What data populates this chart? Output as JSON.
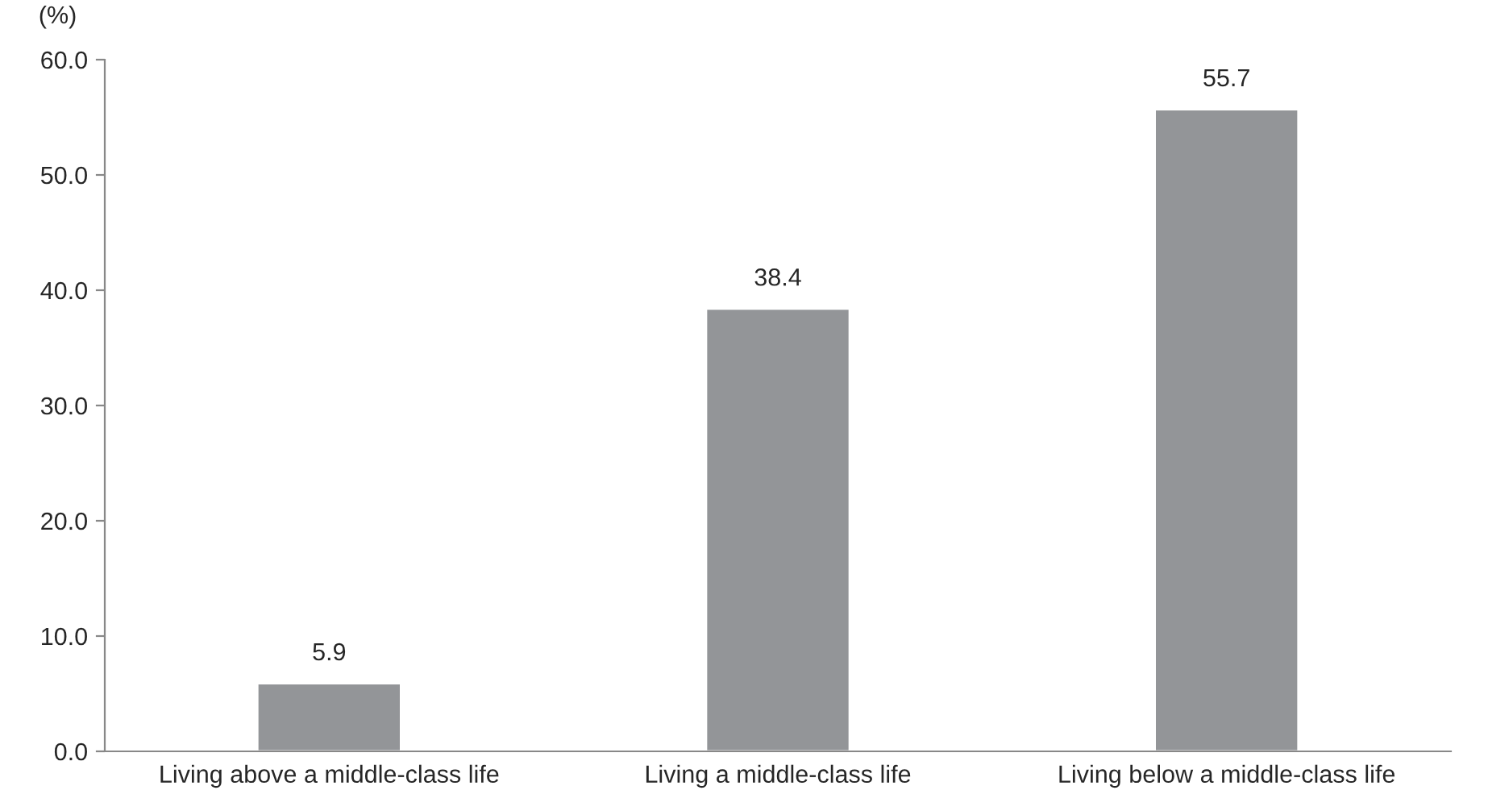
{
  "chart_data": {
    "type": "bar",
    "ylabel": "(%)",
    "categories": [
      "Living above a middle-class life",
      "Living a middle-class life",
      "Living below a middle-class life"
    ],
    "values": [
      5.9,
      38.4,
      55.7
    ],
    "color": "#939598",
    "ylim": [
      0,
      60
    ],
    "yticks": [
      {
        "value": 0,
        "label": "0.0"
      },
      {
        "value": 10,
        "label": "10.0"
      },
      {
        "value": 20,
        "label": "20.0"
      },
      {
        "value": 30,
        "label": "30.0"
      },
      {
        "value": 40,
        "label": "40.0"
      },
      {
        "value": 50,
        "label": "50.0"
      },
      {
        "value": 60,
        "label": "60.0"
      }
    ],
    "data_labels": true,
    "grid": false,
    "legend": false
  }
}
